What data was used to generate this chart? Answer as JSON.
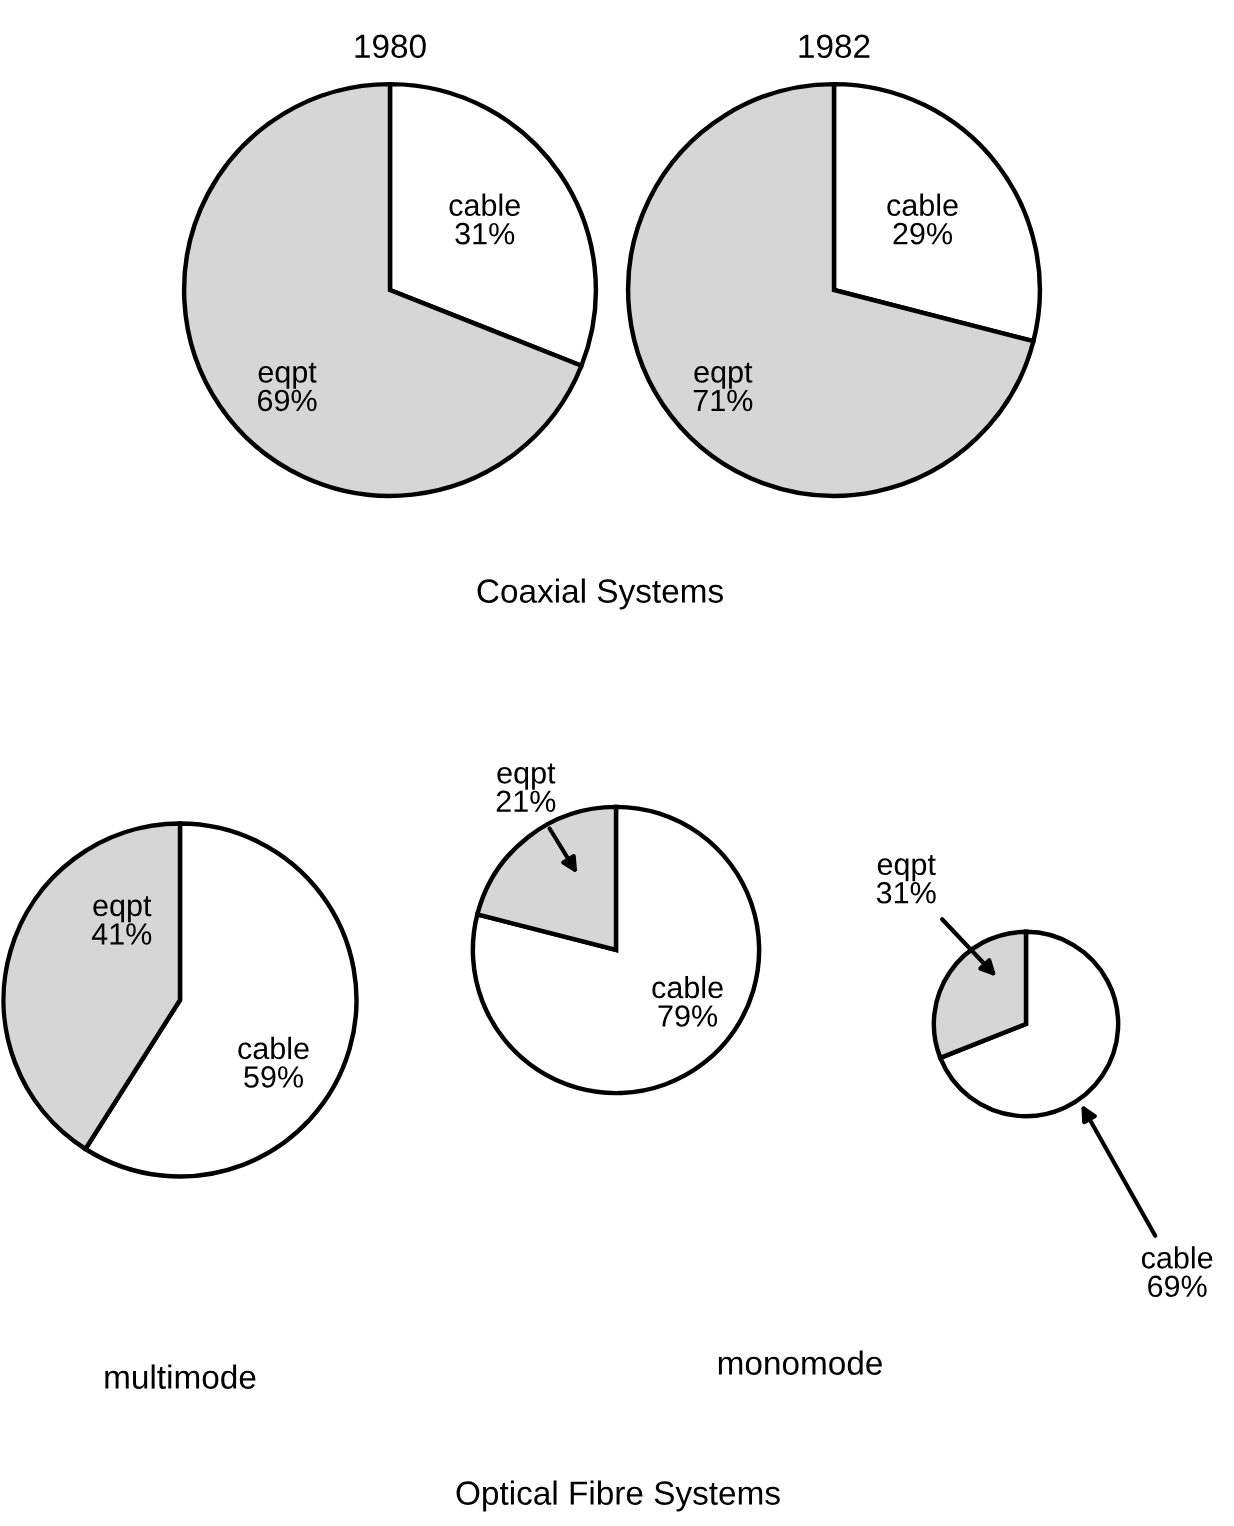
{
  "chart_data": [
    {
      "type": "pie",
      "title": "1980",
      "categories": [
        "cable",
        "eqpt"
      ],
      "values": [
        31,
        69
      ],
      "value_labels": [
        "31%",
        "69%"
      ],
      "colors": [
        "#ffffff",
        "#d6d6d6"
      ],
      "annotations": [
        "Coaxial Systems"
      ]
    },
    {
      "type": "pie",
      "title": "1982",
      "categories": [
        "cable",
        "eqpt"
      ],
      "values": [
        29,
        71
      ],
      "value_labels": [
        "29%",
        "71%"
      ],
      "colors": [
        "#ffffff",
        "#d6d6d6"
      ]
    },
    {
      "type": "pie",
      "categories": [
        "cable",
        "eqpt"
      ],
      "values": [
        59,
        41
      ],
      "value_labels": [
        "59%",
        "41%"
      ],
      "colors": [
        "#ffffff",
        "#d6d6d6"
      ],
      "annotations": [
        "multimode"
      ]
    },
    {
      "type": "pie",
      "categories": [
        "cable",
        "eqpt"
      ],
      "values": [
        79,
        21
      ],
      "value_labels": [
        "79%",
        "21%"
      ],
      "colors": [
        "#ffffff",
        "#d6d6d6"
      ],
      "annotations": [
        "Optical Fibre Systems"
      ]
    },
    {
      "type": "pie",
      "categories": [
        "cable",
        "eqpt"
      ],
      "values": [
        69,
        31
      ],
      "value_labels": [
        "69%",
        "31%"
      ],
      "colors": [
        "#ffffff",
        "#d6d6d6"
      ],
      "annotations": [
        "monomode"
      ]
    }
  ]
}
